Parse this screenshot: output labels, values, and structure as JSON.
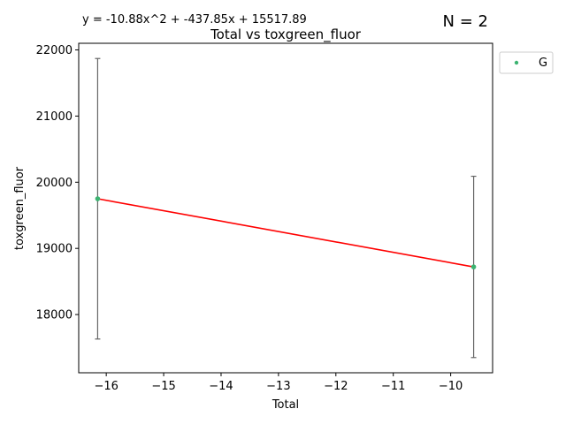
{
  "chart_data": {
    "type": "scatter",
    "title": "Total vs toxgreen_fluor",
    "xlabel": "Total",
    "ylabel": "toxgreen_fluor",
    "equation": "y = -10.88x^2 + -437.85x + 15517.89",
    "n_label": "N = 2",
    "xlim": [
      -16.48,
      -9.27
    ],
    "ylim": [
      17120,
      22100
    ],
    "xticks": [
      -16,
      -15,
      -14,
      -13,
      -12,
      -11,
      -10
    ],
    "xtick_labels": [
      "−16",
      "−15",
      "−14",
      "−13",
      "−12",
      "−11",
      "−10"
    ],
    "yticks": [
      18000,
      19000,
      20000,
      21000,
      22000
    ],
    "ytick_labels": [
      "18000",
      "19000",
      "20000",
      "21000",
      "22000"
    ],
    "series": [
      {
        "name": "G",
        "color": "#3cb371",
        "x": [
          -16.15,
          -9.6
        ],
        "y": [
          19750,
          18720
        ],
        "err_low": [
          17630,
          17350
        ],
        "err_high": [
          21870,
          20090
        ]
      }
    ],
    "fit_line": {
      "color": "#ff0000",
      "x": [
        -16.15,
        -9.6
      ],
      "y": [
        19750,
        18720
      ]
    },
    "errorbar_color": "#666666",
    "grid": false,
    "legend": "outside-top-right"
  }
}
